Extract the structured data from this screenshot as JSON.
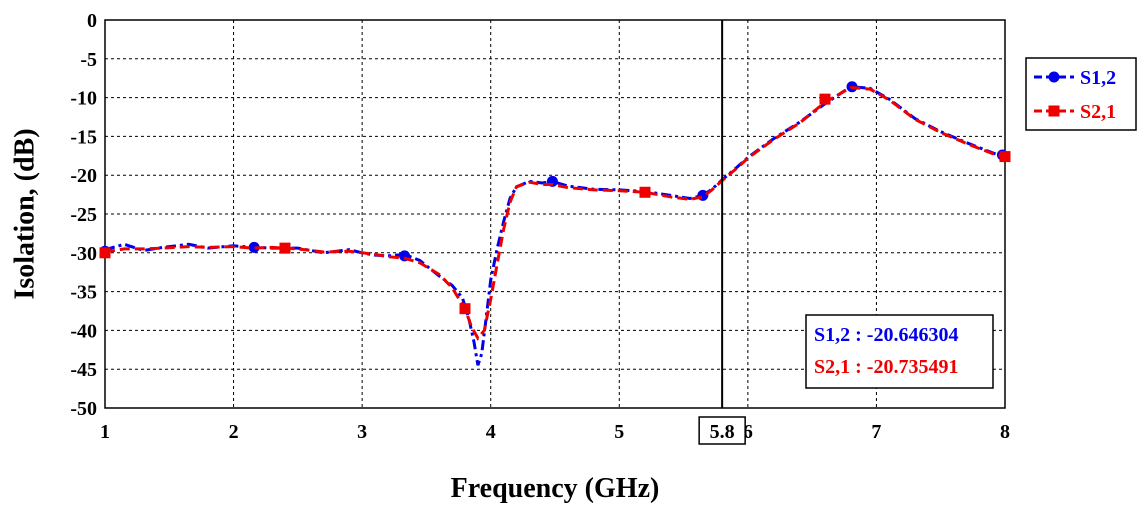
{
  "chart_data": {
    "type": "line",
    "xlabel": "Frequency (GHz)",
    "ylabel": "Isolation, (dB)",
    "xlim": [
      1,
      8
    ],
    "ylim": [
      -50,
      0
    ],
    "xticks": [
      "1",
      "2",
      "3",
      "4",
      "5",
      "6",
      "7",
      "8"
    ],
    "yticks": [
      "0",
      "-5",
      "-10",
      "-15",
      "-20",
      "-25",
      "-30",
      "-35",
      "-40",
      "-45",
      "-50"
    ],
    "grid": true,
    "legend_position": "right-top",
    "marker": {
      "x": 5.8,
      "label": "5.8",
      "readouts": [
        {
          "text": "S1,2 : -20.646304",
          "color": "#0000ee"
        },
        {
          "text": "S2,1 : -20.735491",
          "color": "#ee0000"
        }
      ]
    },
    "series": [
      {
        "name": "S1,2",
        "color": "#0000ee",
        "marker_shape": "circle",
        "x": [
          1.0,
          1.15,
          1.3,
          1.45,
          1.65,
          1.8,
          2.0,
          2.15,
          2.3,
          2.5,
          2.7,
          2.9,
          3.0,
          3.1,
          3.2,
          3.33,
          3.45,
          3.6,
          3.7,
          3.78,
          3.83,
          3.87,
          3.9,
          3.93,
          3.96,
          4.0,
          4.05,
          4.1,
          4.15,
          4.2,
          4.3,
          4.4,
          4.48,
          4.6,
          4.8,
          5.0,
          5.2,
          5.4,
          5.55,
          5.65,
          5.72,
          5.8,
          5.9,
          6.0,
          6.2,
          6.4,
          6.6,
          6.8,
          6.95,
          7.1,
          7.3,
          7.5,
          7.7,
          7.9,
          8.0
        ],
        "y": [
          -29.6,
          -28.9,
          -29.7,
          -29.3,
          -28.9,
          -29.4,
          -29.1,
          -29.3,
          -29.4,
          -29.4,
          -30.0,
          -29.6,
          -30.0,
          -30.3,
          -30.4,
          -30.2,
          -31.0,
          -33.0,
          -34.2,
          -35.8,
          -38.5,
          -41.5,
          -44.5,
          -43.0,
          -39.0,
          -33.5,
          -29.5,
          -26.0,
          -23.0,
          -21.5,
          -20.8,
          -21.0,
          -20.8,
          -21.4,
          -21.8,
          -21.9,
          -22.1,
          -22.6,
          -23.0,
          -22.6,
          -21.8,
          -20.6,
          -19.2,
          -17.7,
          -15.3,
          -13.2,
          -10.8,
          -8.6,
          -8.8,
          -10.2,
          -12.7,
          -14.4,
          -15.8,
          -17.1,
          -17.7
        ],
        "marker_x": [
          1.0,
          2.16,
          3.33,
          4.48,
          5.65,
          6.81,
          7.98
        ],
        "marker_y": [
          -29.8,
          -29.3,
          -30.4,
          -20.8,
          -22.6,
          -8.6,
          -17.4
        ]
      },
      {
        "name": "S2,1",
        "color": "#ee0000",
        "marker_shape": "square",
        "x": [
          1.0,
          1.15,
          1.3,
          1.45,
          1.65,
          1.8,
          2.0,
          2.15,
          2.3,
          2.5,
          2.7,
          2.9,
          3.0,
          3.1,
          3.2,
          3.33,
          3.45,
          3.6,
          3.7,
          3.8,
          3.85,
          3.9,
          3.95,
          4.0,
          4.05,
          4.1,
          4.15,
          4.2,
          4.3,
          4.4,
          4.48,
          4.6,
          4.8,
          5.0,
          5.2,
          5.4,
          5.55,
          5.65,
          5.72,
          5.8,
          5.9,
          6.0,
          6.2,
          6.4,
          6.6,
          6.8,
          6.95,
          7.1,
          7.3,
          7.5,
          7.7,
          7.9,
          8.0
        ],
        "y": [
          -29.9,
          -29.5,
          -29.5,
          -29.4,
          -29.2,
          -29.3,
          -29.2,
          -29.4,
          -29.3,
          -29.5,
          -29.9,
          -29.8,
          -30.0,
          -30.2,
          -30.5,
          -30.7,
          -31.3,
          -32.8,
          -34.5,
          -37.2,
          -39.5,
          -41.0,
          -40.0,
          -36.0,
          -31.5,
          -27.0,
          -23.5,
          -21.5,
          -20.9,
          -21.2,
          -21.2,
          -21.6,
          -21.9,
          -22.0,
          -22.2,
          -22.8,
          -23.1,
          -22.8,
          -21.9,
          -20.7,
          -19.3,
          -17.8,
          -15.4,
          -13.3,
          -10.6,
          -8.7,
          -8.9,
          -10.3,
          -12.8,
          -14.5,
          -15.9,
          -17.2,
          -17.6
        ],
        "marker_x": [
          1.0,
          2.4,
          3.8,
          5.2,
          6.6,
          8.0
        ],
        "marker_y": [
          -30.0,
          -29.4,
          -37.2,
          -22.2,
          -10.2,
          -17.6
        ]
      }
    ]
  }
}
